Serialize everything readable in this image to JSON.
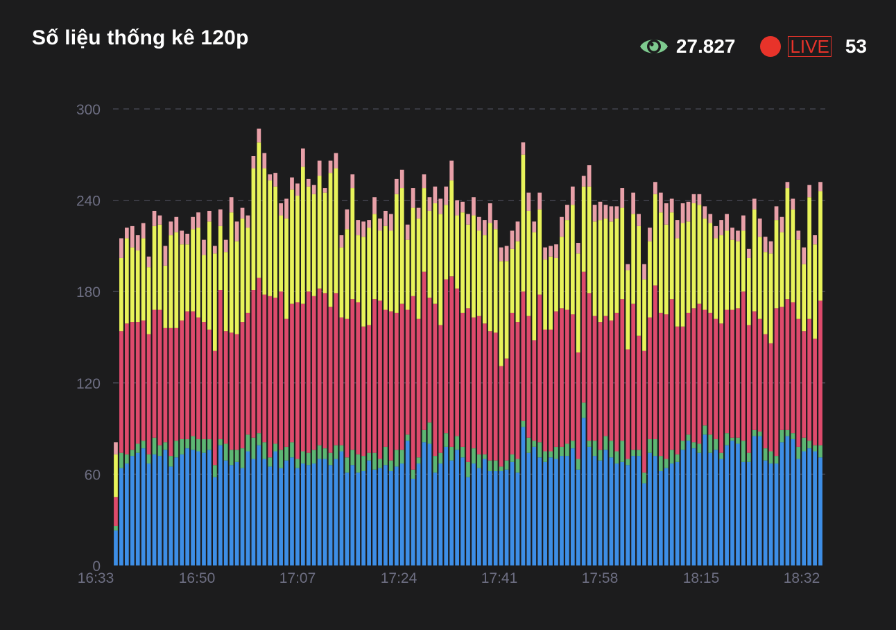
{
  "header": {
    "title": "Số liệu thống kê 120p",
    "viewer_count": "27.827",
    "live_label": "LIVE",
    "live_count": "53"
  },
  "icons": {
    "viewers": "eye-icon",
    "live": "live-dot-icon"
  },
  "colors": {
    "background": "#1c1c1d",
    "eye": "#7ecb8f",
    "live": "#e8332a",
    "series": [
      "#3d8ee6",
      "#5db673",
      "#de4a6c",
      "#e8f35a",
      "#e8a0a8"
    ],
    "axis_text": "#6d6e82",
    "grid": "#4a4b58"
  },
  "chart_data": {
    "type": "bar",
    "stacked": true,
    "grid": true,
    "grid_style": "dashed",
    "legend": "none",
    "ylim": [
      0,
      300
    ],
    "y_ticks": [
      "0",
      "60",
      "120",
      "180",
      "240",
      "300"
    ],
    "x_ticks": [
      "16:33",
      "16:50",
      "17:07",
      "17:24",
      "17:41",
      "17:58",
      "18:15",
      "18:32"
    ],
    "series": [
      {
        "values": [
          23,
          64,
          67,
          72,
          74,
          77,
          67,
          73,
          72,
          76,
          65,
          71,
          73,
          77,
          76,
          75,
          74,
          76,
          58,
          79,
          69,
          66,
          68,
          64,
          75,
          70,
          79,
          70,
          65,
          75,
          64,
          69,
          71,
          64,
          67,
          66,
          67,
          70,
          70,
          66,
          70,
          75,
          61,
          66,
          61,
          62,
          69,
          63,
          64,
          66,
          62,
          65,
          67,
          82,
          57,
          67,
          81,
          80,
          61,
          67,
          78,
          69,
          76,
          71,
          58,
          67,
          64,
          70,
          62,
          62,
          62,
          63,
          68,
          61,
          91,
          74,
          78,
          71,
          68,
          71,
          70,
          72,
          72,
          77,
          63,
          97,
          78,
          72,
          69,
          76,
          71,
          67,
          68,
          66,
          72,
          72,
          54,
          74,
          72,
          62,
          64,
          67,
          68,
          76,
          82,
          77,
          74,
          86,
          74,
          76,
          70,
          79,
          82,
          80,
          68,
          68,
          85,
          85,
          69,
          67,
          67,
          81,
          85,
          83,
          70,
          75,
          77,
          75,
          71
        ]
      },
      {
        "values": [
          3,
          10,
          6,
          4,
          6,
          5,
          6,
          11,
          7,
          5,
          7,
          11,
          10,
          6,
          9,
          8,
          9,
          7,
          8,
          4,
          11,
          10,
          8,
          13,
          11,
          14,
          8,
          11,
          6,
          5,
          12,
          9,
          10,
          6,
          8,
          8,
          9,
          9,
          7,
          8,
          9,
          4,
          10,
          10,
          12,
          10,
          5,
          11,
          6,
          12,
          7,
          11,
          9,
          4,
          6,
          4,
          8,
          14,
          11,
          7,
          9,
          9,
          9,
          7,
          10,
          10,
          9,
          3,
          7,
          7,
          3,
          6,
          5,
          9,
          4,
          10,
          4,
          10,
          7,
          4,
          8,
          6,
          8,
          5,
          7,
          10,
          4,
          10,
          7,
          9,
          11,
          8,
          14,
          4,
          4,
          4,
          7,
          9,
          11,
          10,
          6,
          9,
          5,
          6,
          4,
          4,
          6,
          6,
          12,
          7,
          4,
          8,
          2,
          4,
          14,
          6,
          4,
          3,
          8,
          8,
          5,
          8,
          4,
          4,
          8,
          9,
          5,
          4,
          8
        ]
      },
      {
        "values": [
          19,
          80,
          86,
          84,
          80,
          79,
          79,
          84,
          89,
          75,
          84,
          74,
          78,
          84,
          82,
          80,
          77,
          72,
          75,
          98,
          74,
          77,
          76,
          83,
          80,
          97,
          102,
          97,
          106,
          96,
          104,
          84,
          91,
          103,
          97,
          106,
          101,
          103,
          102,
          96,
          100,
          84,
          91,
          99,
          100,
          85,
          84,
          101,
          104,
          90,
          98,
          90,
          96,
          82,
          114,
          91,
          104,
          82,
          100,
          84,
          101,
          112,
          97,
          88,
          101,
          86,
          91,
          86,
          85,
          84,
          66,
          67,
          93,
          90,
          85,
          80,
          66,
          97,
          80,
          80,
          89,
          91,
          88,
          83,
          70,
          86,
          97,
          82,
          84,
          79,
          79,
          91,
          93,
          72,
          96,
          75,
          80,
          80,
          101,
          94,
          95,
          99,
          84,
          75,
          80,
          88,
          92,
          76,
          80,
          79,
          85,
          81,
          84,
          85,
          98,
          84,
          78,
          74,
          75,
          71,
          97,
          81,
          86,
          86,
          84,
          70,
          80,
          70,
          95
        ]
      },
      {
        "values": [
          28,
          48,
          56,
          49,
          47,
          54,
          44,
          55,
          56,
          41,
          61,
          63,
          50,
          44,
          54,
          59,
          44,
          71,
          64,
          42,
          52,
          79,
          61,
          68,
          56,
          80,
          89,
          83,
          76,
          73,
          50,
          66,
          75,
          70,
          90,
          69,
          67,
          74,
          66,
          88,
          82,
          46,
          59,
          73,
          44,
          59,
          64,
          56,
          46,
          55,
          53,
          78,
          76,
          46,
          58,
          66,
          55,
          57,
          66,
          73,
          49,
          63,
          48,
          66,
          55,
          67,
          56,
          58,
          71,
          68,
          69,
          64,
          42,
          53,
          90,
          69,
          71,
          56,
          46,
          48,
          35,
          47,
          59,
          72,
          65,
          56,
          70,
          62,
          67,
          64,
          65,
          62,
          60,
          52,
          59,
          72,
          47,
          50,
          60,
          66,
          59,
          57,
          58,
          68,
          60,
          69,
          65,
          60,
          59,
          53,
          58,
          52,
          46,
          44,
          40,
          44,
          67,
          54,
          54,
          59,
          58,
          49,
          73,
          61,
          52,
          44,
          80,
          62,
          72
        ]
      },
      {
        "values": [
          8,
          13,
          7,
          14,
          10,
          10,
          7,
          10,
          6,
          13,
          9,
          10,
          9,
          7,
          8,
          10,
          10,
          7,
          5,
          11,
          8,
          10,
          13,
          7,
          8,
          8,
          9,
          10,
          4,
          9,
          8,
          13,
          8,
          8,
          12,
          5,
          6,
          10,
          3,
          8,
          10,
          8,
          13,
          9,
          10,
          10,
          5,
          11,
          8,
          10,
          11,
          10,
          12,
          10,
          13,
          7,
          9,
          9,
          11,
          10,
          12,
          13,
          10,
          7,
          7,
          12,
          9,
          10,
          13,
          6,
          9,
          10,
          12,
          13,
          8,
          12,
          7,
          11,
          8,
          7,
          9,
          13,
          10,
          12,
          7,
          7,
          14,
          11,
          12,
          9,
          10,
          8,
          13,
          4,
          14,
          8,
          10,
          9,
          8,
          13,
          14,
          9,
          12,
          13,
          13,
          6,
          7,
          8,
          6,
          8,
          10,
          11,
          8,
          7,
          10,
          6,
          7,
          12,
          10,
          8,
          9,
          10,
          4,
          7,
          6,
          11,
          8,
          6,
          6
        ]
      }
    ]
  }
}
